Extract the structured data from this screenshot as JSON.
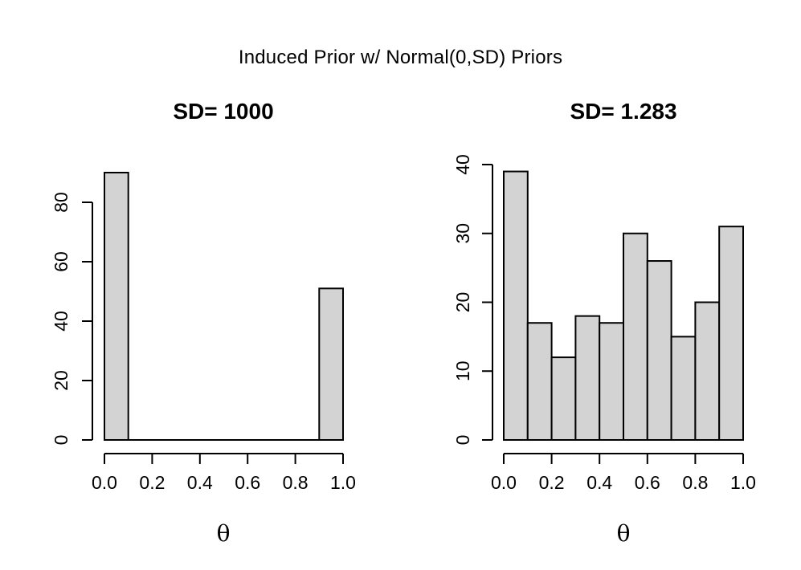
{
  "figure": {
    "main_title": "Induced Prior w/ Normal(0,SD) Priors",
    "background_color": "#ffffff",
    "text_color": "#000000"
  },
  "chart_data": [
    {
      "type": "bar",
      "subtype": "histogram",
      "title": "SD= 1000",
      "xlabel": "θ",
      "ylabel": "",
      "bin_edges": [
        0.0,
        0.1,
        0.2,
        0.3,
        0.4,
        0.5,
        0.6,
        0.7,
        0.8,
        0.9,
        1.0
      ],
      "values": [
        90,
        0,
        0,
        0,
        0,
        0,
        0,
        0,
        0,
        51
      ],
      "xlim": [
        0.0,
        1.0
      ],
      "ylim": [
        0,
        90
      ],
      "xticks": [
        0.0,
        0.2,
        0.4,
        0.6,
        0.8,
        1.0
      ],
      "xtick_labels": [
        "0.0",
        "0.2",
        "0.4",
        "0.6",
        "0.8",
        "1.0"
      ],
      "yticks": [
        0,
        20,
        40,
        60,
        80
      ],
      "ytick_labels": [
        "0",
        "20",
        "40",
        "60",
        "80"
      ],
      "grid": false,
      "legend": null,
      "bar_fill": "#d3d3d3",
      "bar_stroke": "#000000"
    },
    {
      "type": "bar",
      "subtype": "histogram",
      "title": "SD= 1.283",
      "xlabel": "θ",
      "ylabel": "",
      "bin_edges": [
        0.0,
        0.1,
        0.2,
        0.3,
        0.4,
        0.5,
        0.6,
        0.7,
        0.8,
        0.9,
        1.0
      ],
      "values": [
        39,
        17,
        12,
        18,
        17,
        30,
        26,
        15,
        20,
        31
      ],
      "xlim": [
        0.0,
        1.0
      ],
      "ylim": [
        0,
        40
      ],
      "xticks": [
        0.0,
        0.2,
        0.4,
        0.6,
        0.8,
        1.0
      ],
      "xtick_labels": [
        "0.0",
        "0.2",
        "0.4",
        "0.6",
        "0.8",
        "1.0"
      ],
      "yticks": [
        0,
        10,
        20,
        30,
        40
      ],
      "ytick_labels": [
        "0",
        "10",
        "20",
        "30",
        "40"
      ],
      "grid": false,
      "legend": null,
      "bar_fill": "#d3d3d3",
      "bar_stroke": "#000000"
    }
  ]
}
